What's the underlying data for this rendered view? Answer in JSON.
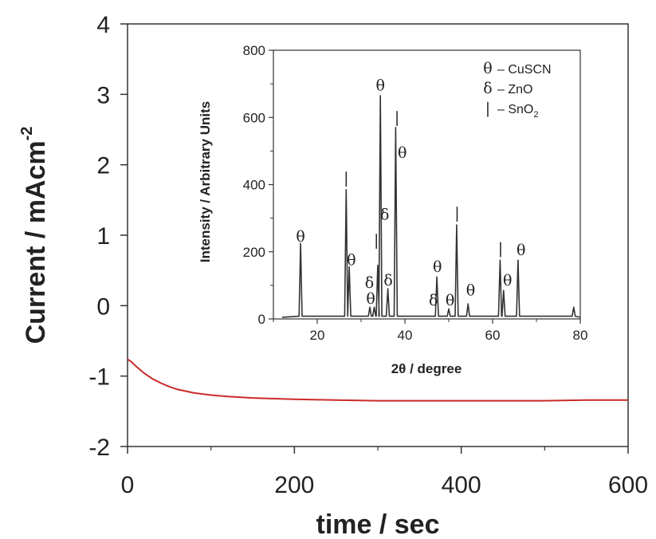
{
  "chart_data": [
    {
      "type": "line",
      "xlabel": "time / sec",
      "ylabel_main": "Current / mAcm",
      "ylabel_sup": "-2",
      "xlim": [
        0,
        600
      ],
      "ylim": [
        -2,
        4
      ],
      "x_ticks": [
        0,
        200,
        400,
        600
      ],
      "y_ticks": [
        -2,
        -1,
        0,
        1,
        2,
        3,
        4
      ],
      "grid": false,
      "series": [
        {
          "color": "#cc2a2a",
          "x": [
            0,
            5,
            10,
            20,
            30,
            40,
            50,
            60,
            80,
            100,
            120,
            150,
            200,
            250,
            300,
            350,
            400,
            450,
            500,
            550,
            600
          ],
          "y": [
            -0.76,
            -0.8,
            -0.86,
            -0.96,
            -1.04,
            -1.1,
            -1.15,
            -1.19,
            -1.24,
            -1.27,
            -1.29,
            -1.31,
            -1.33,
            -1.34,
            -1.35,
            -1.35,
            -1.35,
            -1.35,
            -1.35,
            -1.34,
            -1.34
          ]
        }
      ]
    },
    {
      "type": "line",
      "xlabel": "2θ / degree",
      "ylabel": "Intensity / Arbitrary Units",
      "xlim": [
        10,
        80
      ],
      "ylim": [
        0,
        800
      ],
      "x_ticks": [
        20,
        40,
        60,
        80
      ],
      "y_ticks": [
        0,
        200,
        400,
        600,
        800
      ],
      "grid": false,
      "series": [
        {
          "color": "#333333",
          "baseline": 5,
          "peaks": [
            {
              "x": 16.2,
              "y": 225
            },
            {
              "x": 26.6,
              "y": 385
            },
            {
              "x": 27.3,
              "y": 155
            },
            {
              "x": 32.0,
              "y": 35
            },
            {
              "x": 33.0,
              "y": 35
            },
            {
              "x": 33.8,
              "y": 160
            },
            {
              "x": 34.4,
              "y": 665
            },
            {
              "x": 36.1,
              "y": 90
            },
            {
              "x": 37.9,
              "y": 570
            },
            {
              "x": 47.3,
              "y": 125
            },
            {
              "x": 50.0,
              "y": 30
            },
            {
              "x": 51.8,
              "y": 280
            },
            {
              "x": 54.4,
              "y": 45
            },
            {
              "x": 61.7,
              "y": 175
            },
            {
              "x": 62.5,
              "y": 85
            },
            {
              "x": 65.8,
              "y": 175
            },
            {
              "x": 78.5,
              "y": 35
            }
          ]
        }
      ],
      "annotations": [
        {
          "text": "θ",
          "x": 16.2,
          "y": 230
        },
        {
          "text": "|",
          "x": 26.6,
          "y": 405
        },
        {
          "text": "θ",
          "x": 27.8,
          "y": 160
        },
        {
          "text": "δ",
          "x": 31.9,
          "y": 93
        },
        {
          "text": "|",
          "x": 33.5,
          "y": 220
        },
        {
          "text": "θ",
          "x": 32.2,
          "y": 45
        },
        {
          "text": "θ",
          "x": 34.4,
          "y": 680
        },
        {
          "text": "δ",
          "x": 35.4,
          "y": 295
        },
        {
          "text": "δ",
          "x": 36.2,
          "y": 100
        },
        {
          "text": "|",
          "x": 38.2,
          "y": 585
        },
        {
          "text": "θ",
          "x": 39.4,
          "y": 480
        },
        {
          "text": "θ",
          "x": 47.4,
          "y": 140
        },
        {
          "text": "δ",
          "x": 46.5,
          "y": 40
        },
        {
          "text": "θ",
          "x": 50.3,
          "y": 40
        },
        {
          "text": "|",
          "x": 51.9,
          "y": 300
        },
        {
          "text": "θ",
          "x": 55.0,
          "y": 70
        },
        {
          "text": "|",
          "x": 61.8,
          "y": 195
        },
        {
          "text": "θ",
          "x": 63.4,
          "y": 100
        },
        {
          "text": "θ",
          "x": 66.5,
          "y": 190
        }
      ],
      "legend": [
        {
          "symbol": "θ",
          "label": "– CuSCN"
        },
        {
          "symbol": "δ",
          "label": "– ZnO"
        },
        {
          "symbol": "|",
          "label": "– SnO",
          "sub": "2"
        }
      ]
    }
  ]
}
